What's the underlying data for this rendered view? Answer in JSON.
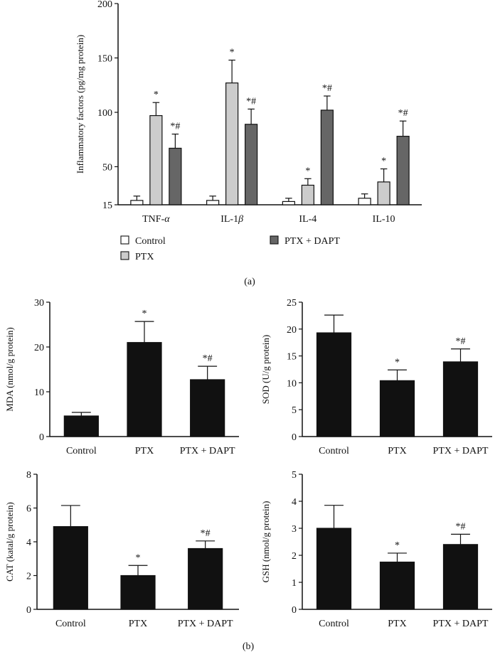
{
  "figure_labels": {
    "a": "(a)",
    "b": "(b)"
  },
  "chart_data": [
    {
      "id": "inflammatory",
      "type": "bar",
      "ylabel": "Inflammatory factors (pg/mg protein)",
      "ylim": [
        15,
        200
      ],
      "yticks": [
        15,
        50,
        100,
        150,
        200
      ],
      "categories": [
        "TNF-α",
        "IL-1β",
        "IL-4",
        "IL-10"
      ],
      "category_parts": [
        {
          "main": "TNF-",
          "italic": "α"
        },
        {
          "main": "IL-1",
          "italic": "β"
        },
        {
          "main": "IL-4",
          "italic": ""
        },
        {
          "main": "IL-10",
          "italic": ""
        }
      ],
      "series": [
        {
          "name": "Control",
          "color": "#ffffff",
          "values": [
            19,
            19,
            18,
            21
          ],
          "errors": [
            4,
            4,
            3,
            4
          ],
          "annotations": [
            "",
            "",
            "",
            ""
          ]
        },
        {
          "name": "PTX",
          "color": "#cccccc",
          "values": [
            97,
            127,
            33,
            36
          ],
          "errors": [
            12,
            21,
            6,
            12
          ],
          "annotations": [
            "*",
            "*",
            "*",
            "*"
          ]
        },
        {
          "name": "PTX + DAPT",
          "color": "#666666",
          "values": [
            67,
            89,
            102,
            78
          ],
          "errors": [
            13,
            14,
            13,
            14
          ],
          "annotations": [
            "*#",
            "*#",
            "*#",
            "*#"
          ]
        }
      ],
      "legend": [
        "Control",
        "PTX",
        "PTX + DAPT"
      ]
    },
    {
      "id": "mda",
      "type": "bar",
      "ylabel": "MDA (nmol/g protein)",
      "ylim": [
        0,
        30
      ],
      "yticks": [
        0,
        10,
        20,
        30
      ],
      "categories": [
        "Control",
        "PTX",
        "PTX + DAPT"
      ],
      "values": [
        4.6,
        21,
        12.7
      ],
      "errors": [
        0.8,
        4.7,
        3
      ],
      "annotations": [
        "",
        "*",
        "*#"
      ],
      "color": "#111111"
    },
    {
      "id": "sod",
      "type": "bar",
      "ylabel": "SOD (U/g protein)",
      "ylim": [
        0,
        25
      ],
      "yticks": [
        0,
        5,
        10,
        15,
        20,
        25
      ],
      "categories": [
        "Control",
        "PTX",
        "PTX + DAPT"
      ],
      "values": [
        19.3,
        10.4,
        13.9
      ],
      "errors": [
        3.3,
        2,
        2.4
      ],
      "annotations": [
        "",
        "*",
        "*#"
      ],
      "color": "#111111"
    },
    {
      "id": "cat",
      "type": "bar",
      "ylabel": "CAT (katal/g protein)",
      "ylim": [
        0,
        8
      ],
      "yticks": [
        0,
        2,
        4,
        6,
        8
      ],
      "categories": [
        "Control",
        "PTX",
        "PTX + DAPT"
      ],
      "values": [
        4.9,
        2,
        3.6
      ],
      "errors": [
        1.25,
        0.6,
        0.45
      ],
      "annotations": [
        "",
        "*",
        "*#"
      ],
      "color": "#111111"
    },
    {
      "id": "gsh",
      "type": "bar",
      "ylabel": "GSH (nmol/g protein)",
      "ylim": [
        0,
        5
      ],
      "yticks": [
        0,
        1,
        2,
        3,
        4,
        5
      ],
      "categories": [
        "Control",
        "PTX",
        "PTX + DAPT"
      ],
      "values": [
        3,
        1.75,
        2.4
      ],
      "errors": [
        0.85,
        0.33,
        0.38
      ],
      "annotations": [
        "",
        "*",
        "*#"
      ],
      "color": "#111111"
    }
  ]
}
